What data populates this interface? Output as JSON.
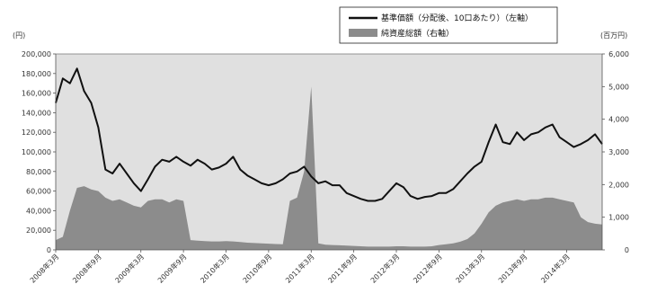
{
  "chart_data": {
    "type": "line",
    "left_unit": "(円)",
    "right_unit": "(百万円)",
    "legend": {
      "placement": "top-right",
      "items": [
        {
          "label": "基準価額（分配後、10口あたり）（左軸）",
          "style": "line",
          "color": "#111111"
        },
        {
          "label": "純資産総額（右軸）",
          "style": "area",
          "color": "#8c8c8c"
        }
      ]
    },
    "y_left": {
      "min": 0,
      "max": 200000,
      "ticks": [
        "0",
        "20,000",
        "40,000",
        "60,000",
        "80,000",
        "100,000",
        "120,000",
        "140,000",
        "160,000",
        "180,000",
        "200,000"
      ]
    },
    "y_right": {
      "min": 0,
      "max": 6000,
      "ticks": [
        "0",
        "1,000",
        "2,000",
        "3,000",
        "4,000",
        "5,000",
        "6,000"
      ]
    },
    "x_range": [
      "2008-03",
      "2014-08"
    ],
    "x_ticks": [
      {
        "date": "2008-03",
        "label": "2008年3月"
      },
      {
        "date": "2008-09",
        "label": "2008年9月"
      },
      {
        "date": "2009-03",
        "label": "2009年3月"
      },
      {
        "date": "2009-09",
        "label": "2009年9月"
      },
      {
        "date": "2010-03",
        "label": "2010年3月"
      },
      {
        "date": "2010-09",
        "label": "2010年9月"
      },
      {
        "date": "2011-03",
        "label": "2011年3月"
      },
      {
        "date": "2011-09",
        "label": "2011年9月"
      },
      {
        "date": "2012-03",
        "label": "2012年3月"
      },
      {
        "date": "2012-09",
        "label": "2012年9月"
      },
      {
        "date": "2013-03",
        "label": "2013年3月"
      },
      {
        "date": "2013-09",
        "label": "2013年9月"
      },
      {
        "date": "2014-03",
        "label": "2014年3月"
      }
    ],
    "grid": false,
    "plot_background": "#e0e0e0",
    "series": [
      {
        "name": "基準価額（分配後、10口あたり）",
        "axis": "left",
        "points": [
          [
            "2008-03",
            150000
          ],
          [
            "2008-04",
            175000
          ],
          [
            "2008-05",
            170000
          ],
          [
            "2008-06",
            185000
          ],
          [
            "2008-07",
            162000
          ],
          [
            "2008-08",
            150000
          ],
          [
            "2008-09",
            125000
          ],
          [
            "2008-10",
            82000
          ],
          [
            "2008-11",
            78000
          ],
          [
            "2008-12",
            88000
          ],
          [
            "2009-01",
            78000
          ],
          [
            "2009-02",
            68000
          ],
          [
            "2009-03",
            60000
          ],
          [
            "2009-04",
            72000
          ],
          [
            "2009-05",
            85000
          ],
          [
            "2009-06",
            92000
          ],
          [
            "2009-07",
            90000
          ],
          [
            "2009-08",
            95000
          ],
          [
            "2009-09",
            90000
          ],
          [
            "2009-10",
            86000
          ],
          [
            "2009-11",
            92000
          ],
          [
            "2009-12",
            88000
          ],
          [
            "2010-01",
            82000
          ],
          [
            "2010-02",
            84000
          ],
          [
            "2010-03",
            88000
          ],
          [
            "2010-04",
            95000
          ],
          [
            "2010-05",
            82000
          ],
          [
            "2010-06",
            76000
          ],
          [
            "2010-07",
            72000
          ],
          [
            "2010-08",
            68000
          ],
          [
            "2010-09",
            66000
          ],
          [
            "2010-10",
            68000
          ],
          [
            "2010-11",
            72000
          ],
          [
            "2010-12",
            78000
          ],
          [
            "2011-01",
            80000
          ],
          [
            "2011-02",
            85000
          ],
          [
            "2011-03",
            75000
          ],
          [
            "2011-04",
            68000
          ],
          [
            "2011-05",
            70000
          ],
          [
            "2011-06",
            66000
          ],
          [
            "2011-07",
            66000
          ],
          [
            "2011-08",
            58000
          ],
          [
            "2011-09",
            55000
          ],
          [
            "2011-10",
            52000
          ],
          [
            "2011-11",
            50000
          ],
          [
            "2011-12",
            50000
          ],
          [
            "2012-01",
            52000
          ],
          [
            "2012-02",
            60000
          ],
          [
            "2012-03",
            68000
          ],
          [
            "2012-04",
            64000
          ],
          [
            "2012-05",
            55000
          ],
          [
            "2012-06",
            52000
          ],
          [
            "2012-07",
            54000
          ],
          [
            "2012-08",
            55000
          ],
          [
            "2012-09",
            58000
          ],
          [
            "2012-10",
            58000
          ],
          [
            "2012-11",
            62000
          ],
          [
            "2012-12",
            70000
          ],
          [
            "2013-01",
            78000
          ],
          [
            "2013-02",
            85000
          ],
          [
            "2013-03",
            90000
          ],
          [
            "2013-04",
            110000
          ],
          [
            "2013-05",
            128000
          ],
          [
            "2013-06",
            110000
          ],
          [
            "2013-07",
            108000
          ],
          [
            "2013-08",
            120000
          ],
          [
            "2013-09",
            112000
          ],
          [
            "2013-10",
            118000
          ],
          [
            "2013-11",
            120000
          ],
          [
            "2013-12",
            125000
          ],
          [
            "2014-01",
            128000
          ],
          [
            "2014-02",
            115000
          ],
          [
            "2014-03",
            110000
          ],
          [
            "2014-04",
            105000
          ],
          [
            "2014-05",
            108000
          ],
          [
            "2014-06",
            112000
          ],
          [
            "2014-07",
            118000
          ],
          [
            "2014-08",
            108000
          ]
        ]
      },
      {
        "name": "純資産総額",
        "axis": "right",
        "points": [
          [
            "2008-03",
            300
          ],
          [
            "2008-04",
            400
          ],
          [
            "2008-05",
            1200
          ],
          [
            "2008-06",
            1900
          ],
          [
            "2008-07",
            1950
          ],
          [
            "2008-08",
            1850
          ],
          [
            "2008-09",
            1800
          ],
          [
            "2008-10",
            1600
          ],
          [
            "2008-11",
            1500
          ],
          [
            "2008-12",
            1550
          ],
          [
            "2009-01",
            1450
          ],
          [
            "2009-02",
            1350
          ],
          [
            "2009-03",
            1300
          ],
          [
            "2009-04",
            1500
          ],
          [
            "2009-05",
            1550
          ],
          [
            "2009-06",
            1550
          ],
          [
            "2009-07",
            1450
          ],
          [
            "2009-08",
            1550
          ],
          [
            "2009-09",
            1500
          ],
          [
            "2009-10",
            300
          ],
          [
            "2009-11",
            280
          ],
          [
            "2009-12",
            270
          ],
          [
            "2010-01",
            260
          ],
          [
            "2010-02",
            260
          ],
          [
            "2010-03",
            270
          ],
          [
            "2010-04",
            260
          ],
          [
            "2010-05",
            240
          ],
          [
            "2010-06",
            220
          ],
          [
            "2010-07",
            210
          ],
          [
            "2010-08",
            200
          ],
          [
            "2010-09",
            190
          ],
          [
            "2010-10",
            180
          ],
          [
            "2010-11",
            170
          ],
          [
            "2010-12",
            1500
          ],
          [
            "2011-01",
            1600
          ],
          [
            "2011-02",
            2400
          ],
          [
            "2011-03",
            5000
          ],
          [
            "2011-04",
            200
          ],
          [
            "2011-05",
            160
          ],
          [
            "2011-06",
            150
          ],
          [
            "2011-07",
            140
          ],
          [
            "2011-08",
            130
          ],
          [
            "2011-09",
            120
          ],
          [
            "2011-10",
            110
          ],
          [
            "2011-11",
            100
          ],
          [
            "2011-12",
            100
          ],
          [
            "2012-01",
            100
          ],
          [
            "2012-02",
            100
          ],
          [
            "2012-03",
            110
          ],
          [
            "2012-04",
            110
          ],
          [
            "2012-05",
            100
          ],
          [
            "2012-06",
            100
          ],
          [
            "2012-07",
            100
          ],
          [
            "2012-08",
            110
          ],
          [
            "2012-09",
            150
          ],
          [
            "2012-10",
            170
          ],
          [
            "2012-11",
            200
          ],
          [
            "2012-12",
            250
          ],
          [
            "2013-01",
            330
          ],
          [
            "2013-02",
            500
          ],
          [
            "2013-03",
            800
          ],
          [
            "2013-04",
            1150
          ],
          [
            "2013-05",
            1350
          ],
          [
            "2013-06",
            1450
          ],
          [
            "2013-07",
            1500
          ],
          [
            "2013-08",
            1550
          ],
          [
            "2013-09",
            1500
          ],
          [
            "2013-10",
            1550
          ],
          [
            "2013-11",
            1550
          ],
          [
            "2013-12",
            1600
          ],
          [
            "2014-01",
            1600
          ],
          [
            "2014-02",
            1550
          ],
          [
            "2014-03",
            1500
          ],
          [
            "2014-04",
            1450
          ],
          [
            "2014-05",
            1000
          ],
          [
            "2014-06",
            850
          ],
          [
            "2014-07",
            800
          ],
          [
            "2014-08",
            780
          ]
        ]
      }
    ]
  }
}
